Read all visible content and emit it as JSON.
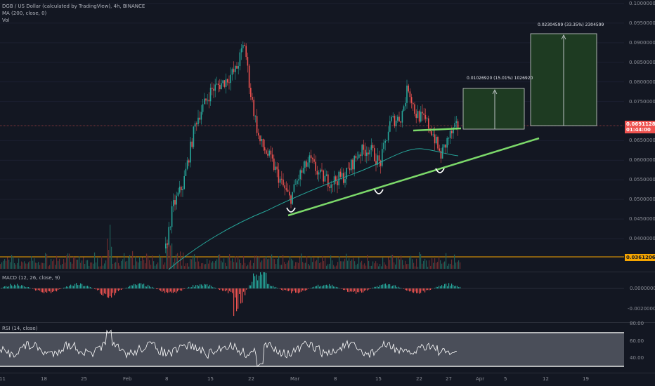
{
  "header": {
    "symbol": "DGB / US Dollar (calculated by TradingView), 4h, BINANCE",
    "ma": "MA (200, close, 0)",
    "vol": "Vol"
  },
  "price_axis": {
    "labels": [
      {
        "v": "0.10000000",
        "p": 0.1
      },
      {
        "v": "0.09500000",
        "p": 0.095
      },
      {
        "v": "0.09000000",
        "p": 0.09
      },
      {
        "v": "0.08500000",
        "p": 0.085
      },
      {
        "v": "0.08000000",
        "p": 0.08
      },
      {
        "v": "0.07500000",
        "p": 0.075
      },
      {
        "v": "0.06500000",
        "p": 0.065
      },
      {
        "v": "0.06000000",
        "p": 0.06
      },
      {
        "v": "0.05500000",
        "p": 0.055
      },
      {
        "v": "0.05000000",
        "p": 0.05
      },
      {
        "v": "0.04500000",
        "p": 0.045
      },
      {
        "v": "0.04000000",
        "p": 0.04
      }
    ],
    "current_price": "0.06911288",
    "countdown": "01:44:00",
    "level_price": "0.03612062",
    "current_color": "#ef5350",
    "level_color": "#f7a600"
  },
  "measures": [
    {
      "label": "0.01026920 (15.01%) 1026920"
    },
    {
      "label": "0.02304599 (33.35%) 2304599"
    }
  ],
  "macd": {
    "legend": "MACD (12, 26, close, 9)",
    "axis": [
      "0.00000000",
      "-0.00200000"
    ]
  },
  "rsi": {
    "legend": "RSI (14, close)",
    "axis": [
      "80.00",
      "60.00",
      "40.00"
    ]
  },
  "time_axis": [
    "11",
    "18",
    "25",
    "Feb",
    "8",
    "15",
    "22",
    "Mar",
    "8",
    "15",
    "22",
    "27",
    "Apr",
    "5",
    "12",
    "19"
  ],
  "colors": {
    "up": "#26a69a",
    "down": "#ef5350",
    "ma": "#26a69a",
    "trendline": "#7cd96a",
    "measure_fill": "#1e3b22",
    "measure_border": "#cfd4d0"
  }
}
